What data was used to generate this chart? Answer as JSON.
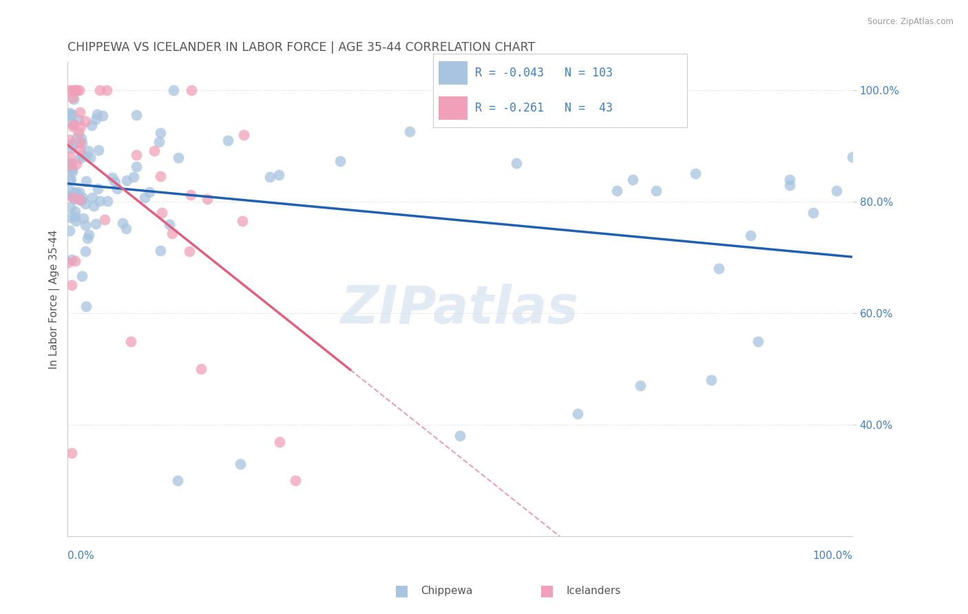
{
  "title": "CHIPPEWA VS ICELANDER IN LABOR FORCE | AGE 35-44 CORRELATION CHART",
  "source": "Source: ZipAtlas.com",
  "ylabel": "In Labor Force | Age 35-44",
  "watermark": "ZIPatlas",
  "legend_r_chip": "-0.043",
  "legend_n_chip": "103",
  "legend_r_icel": "-0.261",
  "legend_n_icel": " 43",
  "chippewa_color": "#a8c4e0",
  "icelander_color": "#f0a0b8",
  "chippewa_line_color": "#2060b0",
  "icelander_line_color": "#e06080",
  "icelander_dash_color": "#e8a0b8",
  "grid_color": "#d8d8d8",
  "title_color": "#555555",
  "axis_value_color": "#4080c0",
  "xlim": [
    0.0,
    1.0
  ],
  "ylim": [
    0.2,
    1.05
  ]
}
